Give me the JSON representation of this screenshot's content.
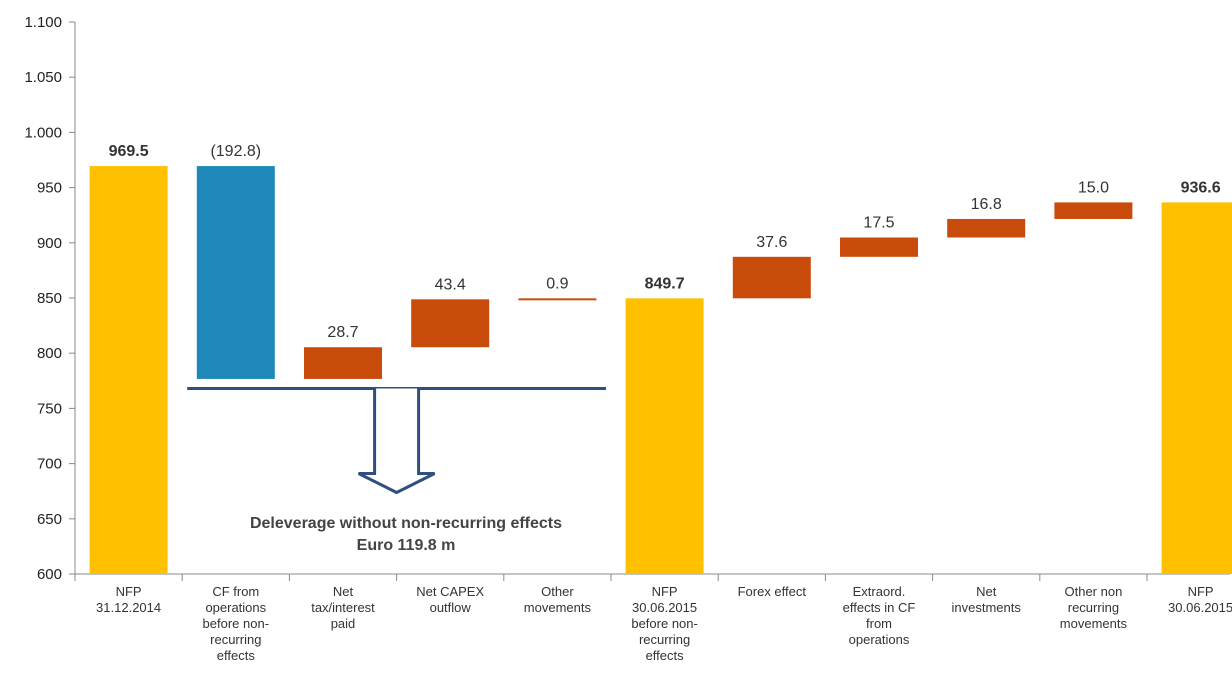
{
  "chart_data": {
    "type": "bar",
    "subtype": "waterfall",
    "categories": [
      [
        "NFP",
        "31.12.2014"
      ],
      [
        "CF from",
        "operations",
        "before non-",
        "recurring",
        "effects"
      ],
      [
        "Net",
        "tax/interest",
        "paid"
      ],
      [
        "Net CAPEX",
        "outflow"
      ],
      [
        "Other",
        "movements"
      ],
      [
        "NFP",
        "30.06.2015",
        "before non-",
        "recurring",
        "effects"
      ],
      [
        "Forex effect"
      ],
      [
        "Extraord.",
        "effects in CF",
        "from",
        "operations"
      ],
      [
        "Net",
        "investments"
      ],
      [
        "Other non",
        "recurring",
        "movements"
      ],
      [
        "NFP",
        "30.06.2015"
      ]
    ],
    "bars": [
      {
        "kind": "total",
        "base": 600,
        "top": 969.5,
        "label": "969.5",
        "bold": true,
        "color": "#FFC000"
      },
      {
        "kind": "delta",
        "base": 776.7,
        "top": 969.5,
        "label": "(192.8)",
        "bold": false,
        "color": "#1E88B8"
      },
      {
        "kind": "delta",
        "base": 776.7,
        "top": 805.4,
        "label": "28.7",
        "bold": false,
        "color": "#C84B0C"
      },
      {
        "kind": "delta",
        "base": 805.4,
        "top": 848.8,
        "label": "43.4",
        "bold": false,
        "color": "#C84B0C"
      },
      {
        "kind": "delta",
        "base": 848.8,
        "top": 849.7,
        "label": "0.9",
        "bold": false,
        "color": "#C84B0C"
      },
      {
        "kind": "total",
        "base": 600,
        "top": 849.7,
        "label": "849.7",
        "bold": true,
        "color": "#FFC000"
      },
      {
        "kind": "delta",
        "base": 849.7,
        "top": 887.3,
        "label": "37.6",
        "bold": false,
        "color": "#C84B0C"
      },
      {
        "kind": "delta",
        "base": 887.3,
        "top": 904.8,
        "label": "17.5",
        "bold": false,
        "color": "#C84B0C"
      },
      {
        "kind": "delta",
        "base": 904.8,
        "top": 921.6,
        "label": "16.8",
        "bold": false,
        "color": "#C84B0C"
      },
      {
        "kind": "delta",
        "base": 921.6,
        "top": 936.6,
        "label": "15.0",
        "bold": false,
        "color": "#C84B0C"
      },
      {
        "kind": "total",
        "base": 600,
        "top": 936.6,
        "label": "936.6",
        "bold": true,
        "color": "#FFC000"
      }
    ],
    "yticks": [
      "600",
      "650",
      "700",
      "750",
      "800",
      "850",
      "900",
      "950",
      "1.000",
      "1.050",
      "1.100"
    ],
    "ylim": [
      600,
      1100
    ],
    "grid": false,
    "annotation": {
      "lines": [
        "Deleverage without non-recurring effects",
        "Euro 119.8 m"
      ],
      "bracket_level": 768,
      "bracket_from_category": 1,
      "bracket_to_category": 4,
      "arrow_color": "#2F4F7F"
    }
  }
}
